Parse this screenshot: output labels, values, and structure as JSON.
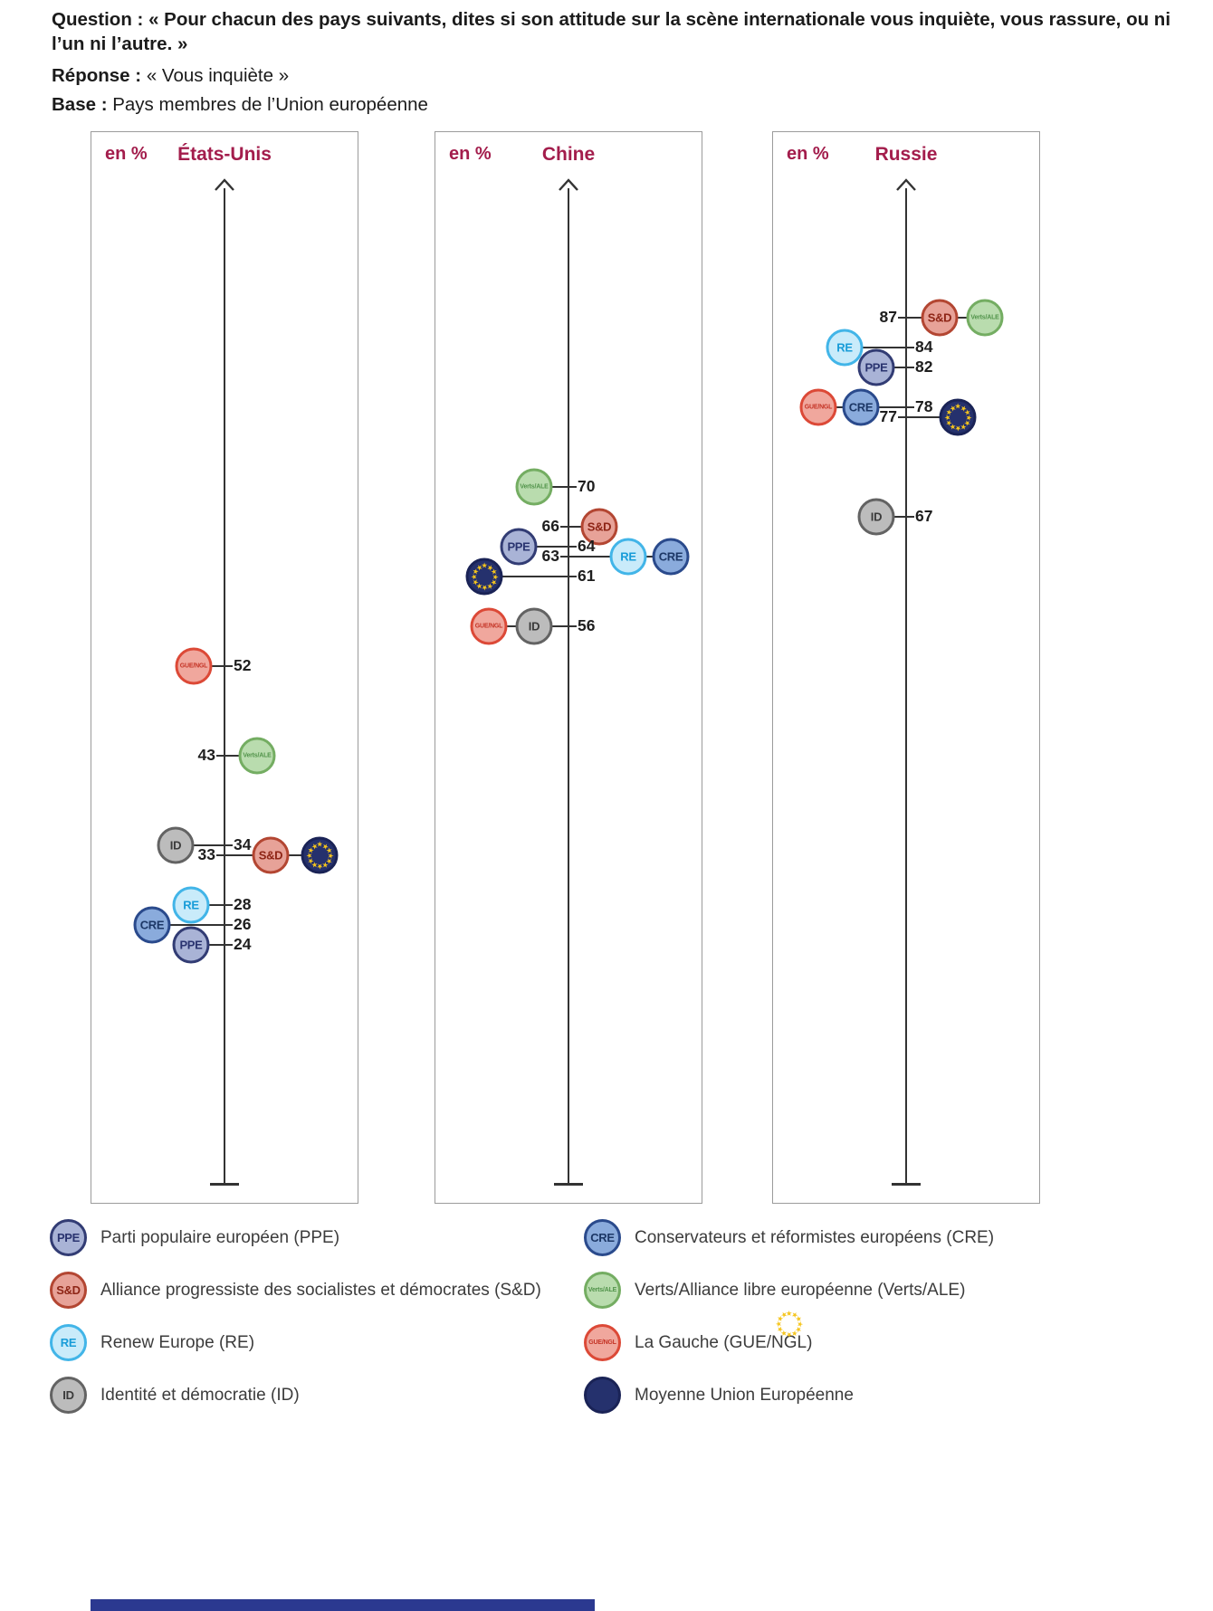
{
  "header": {
    "question_label": "Question :",
    "question_text": "« Pour chacun des pays suivants, dites si son attitude sur la scène internationale vous inquiète, vous rassure, ou ni l’un ni l’autre. »",
    "response_label": "Réponse :",
    "response_text": "« Vous inquiète »",
    "base_label": "Base :",
    "base_text": "Pays membres de l’Union européenne"
  },
  "colors": {
    "panel_title": "#a31d4c",
    "axis": "#333333",
    "footer_bar": "#2b3990",
    "value_label": "#1e1e1e"
  },
  "groups": {
    "PPE": {
      "short": "PPE",
      "name": "Parti populaire européen (PPE)",
      "fill": "#a9b3d6",
      "border": "#323c74",
      "text_color": "#2a3470"
    },
    "S&D": {
      "short": "S&D",
      "name": "Alliance progressiste des socialistes et démocrates (S&D)",
      "fill": "#e7a298",
      "border": "#b34632",
      "text_color": "#8e2516"
    },
    "RE": {
      "short": "RE",
      "name": "Renew Europe (RE)",
      "fill": "#c9ebfa",
      "border": "#42b5e8",
      "text_color": "#189cd8"
    },
    "ID": {
      "short": "ID",
      "name": "Identité et démocratie (ID)",
      "fill": "#bcbcbc",
      "border": "#636363",
      "text_color": "#3b3b3b"
    },
    "CRE": {
      "short": "CRE",
      "name": "Conservateurs et réformistes européens (CRE)",
      "fill": "#8aabdc",
      "border": "#2a4a8c",
      "text_color": "#1c3766"
    },
    "Verts/ALE": {
      "short": "Verts/ALE",
      "name": "Verts/Alliance libre européenne (Verts/ALE)",
      "small": true,
      "fill": "#b9dcae",
      "border": "#74ad62",
      "text_color": "#51934a"
    },
    "GUE/NGL": {
      "short": "GUE/NGL",
      "name": "La Gauche (GUE/NGL)",
      "small": true,
      "fill": "#f0a79d",
      "border": "#dc4937",
      "text_color": "#c43325"
    },
    "UE": {
      "name": "Moyenne Union Européenne",
      "fill": "#25316d",
      "border": "#1a2356",
      "text_color": "#ffffff",
      "star_color": "#f5c51d"
    }
  },
  "chart_data": [
    {
      "type": "scatter",
      "title": "États-Unis",
      "unit_label": "en %",
      "ylabel": "en %",
      "ylim": [
        0,
        100
      ],
      "legend_position": "bottom",
      "points": [
        {
          "group": "GUE/NGL",
          "value": 52,
          "dx": -34
        },
        {
          "group": "Verts/ALE",
          "value": 43,
          "dx": 36
        },
        {
          "group": "ID",
          "value": 34,
          "dx": -54
        },
        {
          "group": "S&D",
          "value": 33,
          "dx": 51
        },
        {
          "group": "UE",
          "value": 33,
          "dx": 105
        },
        {
          "group": "RE",
          "value": 28,
          "dx": -37
        },
        {
          "group": "CRE",
          "value": 26,
          "dx": -80
        },
        {
          "group": "PPE",
          "value": 24,
          "dx": -37
        }
      ]
    },
    {
      "type": "scatter",
      "title": "Chine",
      "unit_label": "en %",
      "ylabel": "en %",
      "ylim": [
        0,
        100
      ],
      "legend_position": "bottom",
      "points": [
        {
          "group": "Verts/ALE",
          "value": 70,
          "dx": -38
        },
        {
          "group": "S&D",
          "value": 66,
          "dx": 34
        },
        {
          "group": "PPE",
          "value": 64,
          "dx": -55
        },
        {
          "group": "RE",
          "value": 63,
          "dx": 66
        },
        {
          "group": "CRE",
          "value": 63,
          "dx": 113
        },
        {
          "group": "UE",
          "value": 61,
          "dx": -93
        },
        {
          "group": "ID",
          "value": 56,
          "dx": -38
        },
        {
          "group": "GUE/NGL",
          "value": 56,
          "dx": -88
        }
      ]
    },
    {
      "type": "scatter",
      "title": "Russie",
      "unit_label": "en %",
      "ylabel": "en %",
      "ylim": [
        0,
        100
      ],
      "legend_position": "bottom",
      "points": [
        {
          "group": "S&D",
          "value": 87,
          "dx": 37
        },
        {
          "group": "Verts/ALE",
          "value": 87,
          "dx": 87
        },
        {
          "group": "RE",
          "value": 84,
          "dx": -68
        },
        {
          "group": "PPE",
          "value": 82,
          "dx": -33
        },
        {
          "group": "CRE",
          "value": 78,
          "dx": -50
        },
        {
          "group": "GUE/NGL",
          "value": 78,
          "dx": -97
        },
        {
          "group": "UE",
          "value": 77,
          "dx": 57
        },
        {
          "group": "ID",
          "value": 67,
          "dx": -33
        }
      ]
    }
  ],
  "legend": {
    "columns": [
      [
        "PPE",
        "S&D",
        "RE",
        "ID"
      ],
      [
        "CRE",
        "Verts/ALE",
        "GUE/NGL",
        "UE"
      ]
    ]
  }
}
